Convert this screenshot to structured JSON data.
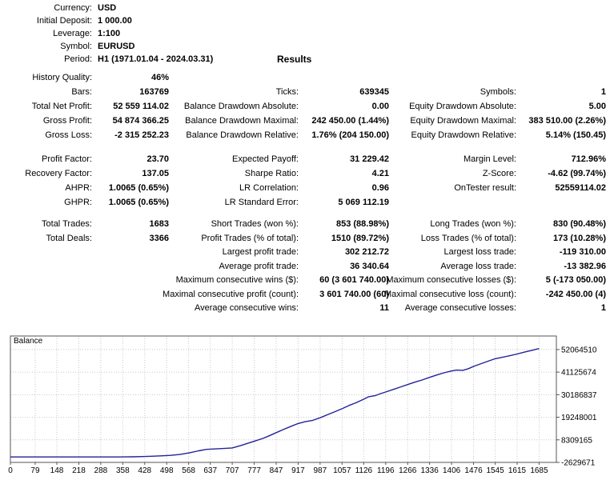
{
  "header": {
    "results_title": "Results",
    "rows": [
      {
        "label": "Currency:",
        "value": "USD"
      },
      {
        "label": "Initial Deposit:",
        "value": "1 000.00"
      },
      {
        "label": "Leverage:",
        "value": "1:100"
      },
      {
        "label": "Symbol:",
        "value": "EURUSD"
      },
      {
        "label": "Period:",
        "value": "H1 (1971.01.04 - 2024.03.31)"
      }
    ]
  },
  "stats_blocks": [
    {
      "rows": [
        [
          {
            "l": "History Quality:",
            "v": "46%"
          },
          null,
          null
        ],
        [
          {
            "l": "Bars:",
            "v": "163769"
          },
          {
            "l": "Ticks:",
            "v": "639345"
          },
          {
            "l": "Symbols:",
            "v": "1"
          }
        ],
        [
          {
            "l": "Total Net Profit:",
            "v": "52 559 114.02"
          },
          {
            "l": "Balance Drawdown Absolute:",
            "v": "0.00"
          },
          {
            "l": "Equity Drawdown Absolute:",
            "v": "5.00"
          }
        ],
        [
          {
            "l": "Gross Profit:",
            "v": "54 874 366.25"
          },
          {
            "l": "Balance Drawdown Maximal:",
            "v": "242 450.00 (1.44%)"
          },
          {
            "l": "Equity Drawdown Maximal:",
            "v": "383 510.00 (2.26%)"
          }
        ],
        [
          {
            "l": "Gross Loss:",
            "v": "-2 315 252.23"
          },
          {
            "l": "Balance Drawdown Relative:",
            "v": "1.76% (204 150.00)"
          },
          {
            "l": "Equity Drawdown Relative:",
            "v": "5.14% (150.45)"
          }
        ]
      ]
    },
    {
      "rows": [
        [
          {
            "l": "Profit Factor:",
            "v": "23.70"
          },
          {
            "l": "Expected Payoff:",
            "v": "31 229.42"
          },
          {
            "l": "Margin Level:",
            "v": "712.96%"
          }
        ],
        [
          {
            "l": "Recovery Factor:",
            "v": "137.05"
          },
          {
            "l": "Sharpe Ratio:",
            "v": "4.21"
          },
          {
            "l": "Z-Score:",
            "v": "-4.62 (99.74%)"
          }
        ],
        [
          {
            "l": "AHPR:",
            "v": "1.0065 (0.65%)"
          },
          {
            "l": "LR Correlation:",
            "v": "0.96"
          },
          {
            "l": "OnTester result:",
            "v": "52559114.02"
          }
        ],
        [
          {
            "l": "GHPR:",
            "v": "1.0065 (0.65%)"
          },
          {
            "l": "LR Standard Error:",
            "v": "5 069 112.19"
          },
          null
        ]
      ]
    },
    {
      "rows": [
        [
          {
            "l": "Total Trades:",
            "v": "1683"
          },
          {
            "l": "Short Trades (won %):",
            "v": "853 (88.98%)"
          },
          {
            "l": "Long Trades (won %):",
            "v": "830 (90.48%)"
          }
        ],
        [
          {
            "l": "Total Deals:",
            "v": "3366"
          },
          {
            "l": "Profit Trades (% of total):",
            "v": "1510 (89.72%)"
          },
          {
            "l": "Loss Trades (% of total):",
            "v": "173 (10.28%)"
          }
        ],
        [
          null,
          {
            "l": "Largest profit trade:",
            "v": "302 212.72"
          },
          {
            "l": "Largest loss trade:",
            "v": "-119 310.00"
          }
        ],
        [
          null,
          {
            "l": "Average profit trade:",
            "v": "36 340.64"
          },
          {
            "l": "Average loss trade:",
            "v": "-13 382.96"
          }
        ],
        [
          null,
          {
            "l": "Maximum consecutive wins ($):",
            "v": "60 (3 601 740.00)"
          },
          {
            "l": "Maximum consecutive losses ($):",
            "v": "5 (-173 050.00)"
          }
        ],
        [
          null,
          {
            "l": "Maximal consecutive profit (count):",
            "v": "3 601 740.00 (60)"
          },
          {
            "l": "Maximal consecutive loss (count):",
            "v": "-242 450.00 (4)"
          }
        ],
        [
          null,
          {
            "l": "Average consecutive wins:",
            "v": "11"
          },
          {
            "l": "Average consecutive losses:",
            "v": "1"
          }
        ]
      ]
    }
  ],
  "chart_data": {
    "type": "line",
    "title": "Balance",
    "xlim": [
      0,
      1740
    ],
    "ylim": [
      -2629671,
      58628782
    ],
    "x_ticks": [
      0,
      79,
      148,
      218,
      288,
      358,
      428,
      498,
      568,
      637,
      707,
      777,
      847,
      917,
      987,
      1057,
      1126,
      1196,
      1266,
      1336,
      1406,
      1476,
      1545,
      1615,
      1685
    ],
    "y_ticks": [
      -2629671,
      8309165,
      19248001,
      30186837,
      41125674,
      52064510
    ],
    "grid": true,
    "legend_position": "top-left",
    "colors": {
      "line": "#222299",
      "grid": "#c8c8c8",
      "border": "#555555",
      "text": "#000000"
    },
    "series": [
      {
        "name": "Balance",
        "points": [
          [
            0,
            1000
          ],
          [
            60,
            1000
          ],
          [
            120,
            1400
          ],
          [
            180,
            2200
          ],
          [
            240,
            3500
          ],
          [
            300,
            6000
          ],
          [
            350,
            12000
          ],
          [
            366,
            40000
          ],
          [
            390,
            90000
          ],
          [
            420,
            200000
          ],
          [
            450,
            350000
          ],
          [
            480,
            550000
          ],
          [
            510,
            800000
          ],
          [
            540,
            1200000
          ],
          [
            570,
            2000000
          ],
          [
            600,
            3000000
          ],
          [
            625,
            3700000
          ],
          [
            650,
            3900000
          ],
          [
            680,
            4100000
          ],
          [
            707,
            4400000
          ],
          [
            735,
            5600000
          ],
          [
            760,
            6800000
          ],
          [
            777,
            7600000
          ],
          [
            805,
            9000000
          ],
          [
            825,
            10300000
          ],
          [
            847,
            11800000
          ],
          [
            870,
            13300000
          ],
          [
            895,
            14900000
          ],
          [
            917,
            16200000
          ],
          [
            940,
            17100000
          ],
          [
            962,
            17700000
          ],
          [
            987,
            19000000
          ],
          [
            1012,
            20600000
          ],
          [
            1035,
            22000000
          ],
          [
            1057,
            23400000
          ],
          [
            1080,
            25000000
          ],
          [
            1102,
            26300000
          ],
          [
            1126,
            28000000
          ],
          [
            1142,
            29200000
          ],
          [
            1162,
            29700000
          ],
          [
            1180,
            30700000
          ],
          [
            1196,
            31500000
          ],
          [
            1222,
            32800000
          ],
          [
            1245,
            34000000
          ],
          [
            1266,
            35100000
          ],
          [
            1290,
            36300000
          ],
          [
            1312,
            37300000
          ],
          [
            1336,
            38600000
          ],
          [
            1360,
            39800000
          ],
          [
            1382,
            40800000
          ],
          [
            1406,
            41700000
          ],
          [
            1422,
            42100000
          ],
          [
            1442,
            42000000
          ],
          [
            1460,
            42800000
          ],
          [
            1476,
            43900000
          ],
          [
            1500,
            45200000
          ],
          [
            1522,
            46400000
          ],
          [
            1545,
            47600000
          ],
          [
            1568,
            48300000
          ],
          [
            1592,
            49100000
          ],
          [
            1615,
            49900000
          ],
          [
            1640,
            50900000
          ],
          [
            1662,
            51700000
          ],
          [
            1685,
            52560114
          ]
        ]
      }
    ]
  }
}
